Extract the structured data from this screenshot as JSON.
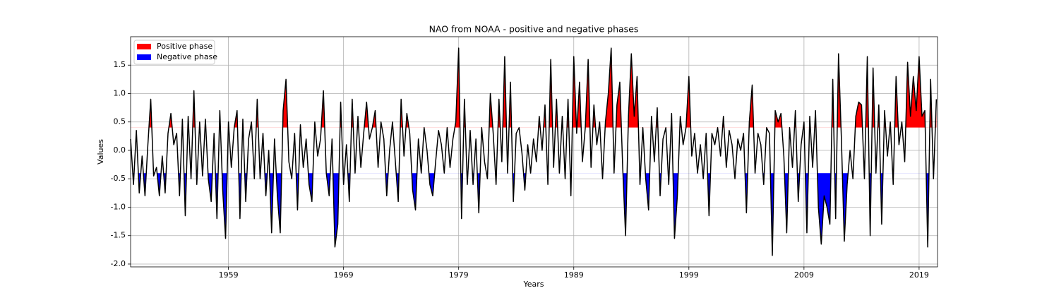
{
  "chart_data": {
    "type": "phase-line",
    "title": "NAO from NOAA - positive and negative phases",
    "xlabel": "Years",
    "ylabel": "Values",
    "line_color": "black",
    "fills": [
      {
        "name": "Positive phase",
        "color": "red",
        "threshold": 0.4,
        "side": "above"
      },
      {
        "name": "Negative phase",
        "color": "blue",
        "threshold": -0.4,
        "side": "below"
      }
    ],
    "legend": "upper left",
    "grid": true,
    "xlim": [
      1950.5,
      2020.6
    ],
    "ylim": [
      -2.05,
      2.0
    ],
    "xticks": [
      1959,
      1969,
      1979,
      1989,
      1999,
      2009,
      2019
    ],
    "yticks": [
      {
        "value": -2,
        "label": "-2.0"
      },
      -1.5,
      {
        "value": -1,
        "label": "-1.0"
      },
      -0.5,
      {
        "value": 0,
        "label": "0.0"
      },
      0.5,
      {
        "value": 1,
        "label": "1.0"
      },
      1.5
    ],
    "x": [
      1950.5,
      1950.75,
      1951,
      1951.25,
      1951.5,
      1951.75,
      1952,
      1952.25,
      1952.5,
      1952.75,
      1953,
      1953.25,
      1953.5,
      1953.75,
      1954,
      1954.25,
      1954.5,
      1954.75,
      1955,
      1955.25,
      1955.5,
      1955.75,
      1956,
      1956.25,
      1956.5,
      1956.75,
      1957,
      1957.25,
      1957.5,
      1957.75,
      1958,
      1958.25,
      1958.5,
      1958.75,
      1959,
      1959.25,
      1959.5,
      1959.75,
      1960,
      1960.25,
      1960.5,
      1960.75,
      1961,
      1961.25,
      1961.5,
      1961.75,
      1962,
      1962.25,
      1962.5,
      1962.75,
      1963,
      1963.25,
      1963.5,
      1963.75,
      1964,
      1964.25,
      1964.5,
      1964.75,
      1965,
      1965.25,
      1965.5,
      1965.75,
      1966,
      1966.25,
      1966.5,
      1966.75,
      1967,
      1967.25,
      1967.5,
      1967.75,
      1968,
      1968.25,
      1968.5,
      1968.75,
      1969,
      1969.25,
      1969.5,
      1969.75,
      1970,
      1970.25,
      1970.5,
      1970.75,
      1971,
      1971.25,
      1971.5,
      1971.75,
      1972,
      1972.25,
      1972.5,
      1972.75,
      1973,
      1973.25,
      1973.5,
      1973.75,
      1974,
      1974.25,
      1974.5,
      1974.75,
      1975,
      1975.25,
      1975.5,
      1975.75,
      1976,
      1976.25,
      1976.5,
      1976.75,
      1977,
      1977.25,
      1977.5,
      1977.75,
      1978,
      1978.25,
      1978.5,
      1978.75,
      1979,
      1979.25,
      1979.5,
      1979.75,
      1980,
      1980.25,
      1980.5,
      1980.75,
      1981,
      1981.25,
      1981.5,
      1981.75,
      1982,
      1982.25,
      1982.5,
      1982.75,
      1983,
      1983.25,
      1983.5,
      1983.75,
      1984,
      1984.25,
      1984.5,
      1984.75,
      1985,
      1985.25,
      1985.5,
      1985.75,
      1986,
      1986.25,
      1986.5,
      1986.75,
      1987,
      1987.25,
      1987.5,
      1987.75,
      1988,
      1988.25,
      1988.5,
      1988.75,
      1989,
      1989.25,
      1989.5,
      1989.75,
      1990,
      1990.25,
      1990.5,
      1990.75,
      1991,
      1991.25,
      1991.5,
      1991.75,
      1992,
      1992.25,
      1992.5,
      1992.75,
      1993,
      1993.25,
      1993.5,
      1993.75,
      1994,
      1994.25,
      1994.5,
      1994.75,
      1995,
      1995.25,
      1995.5,
      1995.75,
      1996,
      1996.25,
      1996.5,
      1996.75,
      1997,
      1997.25,
      1997.5,
      1997.75,
      1998,
      1998.25,
      1998.5,
      1998.75,
      1999,
      1999.25,
      1999.5,
      1999.75,
      2000,
      2000.25,
      2000.5,
      2000.75,
      2001,
      2001.25,
      2001.5,
      2001.75,
      2002,
      2002.25,
      2002.5,
      2002.75,
      2003,
      2003.25,
      2003.5,
      2003.75,
      2004,
      2004.25,
      2004.5,
      2004.75,
      2005,
      2005.25,
      2005.5,
      2005.75,
      2006,
      2006.25,
      2006.5,
      2006.75,
      2007,
      2007.25,
      2007.5,
      2007.75,
      2008,
      2008.25,
      2008.5,
      2008.75,
      2009,
      2009.25,
      2009.5,
      2009.75,
      2010,
      2010.25,
      2010.5,
      2010.75,
      2011,
      2011.25,
      2011.5,
      2011.75,
      2012,
      2012.25,
      2012.5,
      2012.75,
      2013,
      2013.25,
      2013.5,
      2013.75,
      2014,
      2014.25,
      2014.5,
      2014.75,
      2015,
      2015.25,
      2015.5,
      2015.75,
      2016,
      2016.25,
      2016.5,
      2016.75,
      2017,
      2017.25,
      2017.5,
      2017.75,
      2018,
      2018.25,
      2018.5,
      2018.75,
      2019,
      2019.25,
      2019.5,
      2019.75,
      2020,
      2020.25,
      2020.5
    ],
    "values": [
      0.2,
      -0.6,
      0.35,
      -0.75,
      -0.1,
      -0.8,
      0.1,
      0.9,
      -0.45,
      -0.3,
      -0.8,
      -0.1,
      -0.75,
      0.3,
      0.65,
      0.1,
      0.3,
      -0.8,
      0.55,
      -1.15,
      0.6,
      -0.5,
      1.05,
      -0.6,
      0.5,
      -0.45,
      0.55,
      -0.5,
      -0.9,
      0.3,
      -1.2,
      0.7,
      -0.7,
      -1.55,
      0.5,
      -0.3,
      0.4,
      0.7,
      -1.2,
      0.55,
      -0.9,
      0.2,
      0.5,
      -0.5,
      0.9,
      -0.5,
      0.3,
      -0.8,
      0.0,
      -1.45,
      0.2,
      -0.8,
      -1.45,
      0.7,
      1.25,
      -0.2,
      -0.5,
      0.3,
      -1.05,
      0.45,
      -0.3,
      0.2,
      -0.6,
      -0.9,
      0.5,
      -0.1,
      0.2,
      1.05,
      -0.4,
      -0.8,
      0.2,
      -1.7,
      -1.3,
      0.85,
      -0.6,
      0.1,
      -0.9,
      0.9,
      -0.4,
      0.6,
      -0.3,
      0.3,
      0.85,
      0.2,
      0.4,
      0.7,
      -0.3,
      0.5,
      0.2,
      -0.8,
      0.0,
      0.5,
      -0.2,
      -0.9,
      0.9,
      -0.1,
      0.65,
      0.3,
      -0.7,
      -1.05,
      0.2,
      -0.4,
      0.4,
      0.0,
      -0.6,
      -0.8,
      -0.2,
      0.35,
      0.1,
      -0.4,
      0.4,
      -0.3,
      0.2,
      0.5,
      1.8,
      -1.2,
      0.9,
      -0.6,
      0.35,
      -0.6,
      0.2,
      -1.1,
      0.4,
      -0.2,
      -0.5,
      1.0,
      0.3,
      -0.6,
      0.9,
      -0.2,
      1.65,
      -0.4,
      1.2,
      -0.9,
      0.3,
      0.4,
      -0.05,
      -0.7,
      0.1,
      -0.4,
      0.2,
      -0.2,
      0.6,
      0.0,
      0.8,
      -0.6,
      1.6,
      -0.3,
      0.9,
      -0.4,
      0.6,
      -0.5,
      0.9,
      -0.8,
      1.65,
      0.3,
      1.2,
      -0.2,
      0.4,
      1.6,
      -0.3,
      0.8,
      0.1,
      0.5,
      -0.5,
      0.5,
      1.0,
      1.8,
      -0.4,
      0.8,
      1.2,
      -0.3,
      -1.5,
      0.6,
      1.7,
      0.6,
      1.3,
      -0.6,
      0.4,
      -0.5,
      -1.05,
      0.6,
      -0.2,
      0.75,
      -0.8,
      0.2,
      0.4,
      -0.6,
      0.65,
      -1.55,
      -0.8,
      0.6,
      0.1,
      0.4,
      1.3,
      -0.1,
      0.3,
      -0.4,
      0.1,
      -0.5,
      0.3,
      -1.15,
      0.3,
      0.1,
      0.4,
      -0.1,
      0.6,
      -0.3,
      0.35,
      0.1,
      -0.5,
      0.2,
      0.0,
      0.3,
      -1.1,
      0.5,
      1.15,
      -0.4,
      0.3,
      0.1,
      -0.6,
      0.4,
      0.3,
      -1.85,
      0.7,
      0.5,
      0.65,
      -0.1,
      -1.45,
      0.4,
      -0.3,
      0.7,
      -0.9,
      0.1,
      0.5,
      -1.45,
      0.6,
      -0.3,
      0.7,
      -1.0,
      -1.65,
      -0.8,
      -1.0,
      -1.3,
      1.25,
      -1.2,
      1.7,
      0.2,
      -1.6,
      -0.6,
      0.0,
      -0.5,
      0.6,
      0.85,
      0.8,
      -0.5,
      1.65,
      -1.5,
      1.45,
      -0.4,
      0.8,
      -1.3,
      0.7,
      -0.1,
      0.5,
      -0.6,
      1.3,
      0.1,
      0.5,
      -0.2,
      1.55,
      0.6,
      1.3,
      0.7,
      1.65,
      0.6,
      0.7,
      -1.7,
      1.25,
      -0.5,
      0.9
    ]
  }
}
